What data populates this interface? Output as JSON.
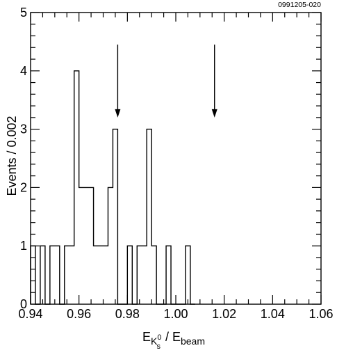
{
  "figure_code": "0991205-020",
  "chart_data": {
    "type": "histogram",
    "xlabel": {
      "main": "E",
      "sub_particle": "K",
      "sub_sub": "s",
      "sub_sup": "0",
      "separator": " / ",
      "denominator_main": "E",
      "denominator_sub": "beam"
    },
    "ylabel": "Events / 0.002",
    "xlim": [
      0.94,
      1.06
    ],
    "ylim": [
      0,
      5
    ],
    "xticks": [
      0.94,
      0.96,
      0.98,
      1.0,
      1.02,
      1.04,
      1.06
    ],
    "xtick_labels": [
      "0.94",
      "0.96",
      "0.98",
      "1.00",
      "1.02",
      "1.04",
      "1.06"
    ],
    "yticks": [
      0,
      1,
      2,
      3,
      4,
      5
    ],
    "ytick_labels": [
      "0",
      "1",
      "2",
      "3",
      "4",
      "5"
    ],
    "bin_width": 0.002,
    "bins": [
      {
        "x_low": 0.94,
        "count": 1
      },
      {
        "x_low": 0.942,
        "count": 0
      },
      {
        "x_low": 0.944,
        "count": 1
      },
      {
        "x_low": 0.946,
        "count": 0
      },
      {
        "x_low": 0.948,
        "count": 1
      },
      {
        "x_low": 0.95,
        "count": 1
      },
      {
        "x_low": 0.952,
        "count": 0
      },
      {
        "x_low": 0.954,
        "count": 1
      },
      {
        "x_low": 0.956,
        "count": 1
      },
      {
        "x_low": 0.958,
        "count": 4
      },
      {
        "x_low": 0.96,
        "count": 2
      },
      {
        "x_low": 0.962,
        "count": 2
      },
      {
        "x_low": 0.964,
        "count": 2
      },
      {
        "x_low": 0.966,
        "count": 1
      },
      {
        "x_low": 0.968,
        "count": 1
      },
      {
        "x_low": 0.97,
        "count": 1
      },
      {
        "x_low": 0.972,
        "count": 2
      },
      {
        "x_low": 0.974,
        "count": 3
      },
      {
        "x_low": 0.976,
        "count": 0
      },
      {
        "x_low": 0.978,
        "count": 0
      },
      {
        "x_low": 0.98,
        "count": 1
      },
      {
        "x_low": 0.982,
        "count": 0
      },
      {
        "x_low": 0.984,
        "count": 1
      },
      {
        "x_low": 0.986,
        "count": 1
      },
      {
        "x_low": 0.988,
        "count": 3
      },
      {
        "x_low": 0.99,
        "count": 1
      },
      {
        "x_low": 0.992,
        "count": 0
      },
      {
        "x_low": 0.994,
        "count": 0
      },
      {
        "x_low": 0.996,
        "count": 1
      },
      {
        "x_low": 0.998,
        "count": 0
      },
      {
        "x_low": 1.0,
        "count": 0
      },
      {
        "x_low": 1.002,
        "count": 0
      },
      {
        "x_low": 1.004,
        "count": 1
      },
      {
        "x_low": 1.006,
        "count": 0
      }
    ],
    "arrows": [
      {
        "x": 0.976,
        "y_top": 4.45,
        "y_tip": 3.2
      },
      {
        "x": 1.016,
        "y_top": 4.45,
        "y_tip": 3.2
      }
    ],
    "grid": false,
    "legend": "none"
  }
}
